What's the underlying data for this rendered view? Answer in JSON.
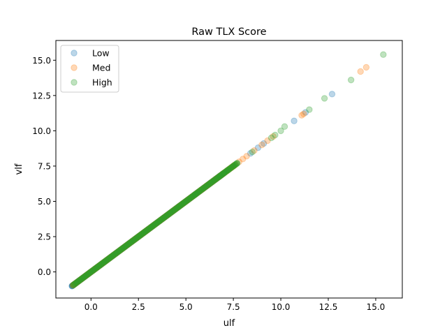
{
  "chart_data": {
    "type": "scatter",
    "title": "Raw TLX Score",
    "xlabel": "ulf",
    "ylabel": "vlf",
    "xlim": [
      -1.85,
      16.4
    ],
    "ylim": [
      -1.85,
      16.4
    ],
    "xticks": [
      0.0,
      2.5,
      5.0,
      7.5,
      10.0,
      12.5,
      15.0
    ],
    "xtick_labels": [
      "0.0",
      "2.5",
      "5.0",
      "7.5",
      "10.0",
      "12.5",
      "15.0"
    ],
    "yticks": [
      0.0,
      2.5,
      5.0,
      7.5,
      10.0,
      12.5,
      15.0
    ],
    "ytick_labels": [
      "0.0",
      "2.5",
      "5.0",
      "7.5",
      "10.0",
      "12.5",
      "15.0"
    ],
    "grid": false,
    "legend_position": "upper-left",
    "marker_alpha": 0.3,
    "series": [
      {
        "name": "Low",
        "color": "#1f77b4",
        "range": [
          -1.0,
          7.0
        ],
        "points": [
          [
            -1.0,
            -1.0
          ],
          [
            -0.98,
            -0.98
          ],
          [
            -0.95,
            -0.95
          ],
          [
            -0.9,
            -0.9
          ],
          [
            -0.85,
            -0.85
          ],
          [
            -0.8,
            -0.8
          ],
          [
            -0.7,
            -0.7
          ],
          [
            -0.6,
            -0.6
          ],
          [
            6.3,
            6.3
          ],
          [
            6.6,
            6.6
          ],
          [
            7.5,
            7.5
          ],
          [
            8.4,
            8.4
          ],
          [
            8.8,
            8.8
          ],
          [
            9.1,
            9.1
          ],
          [
            10.7,
            10.7
          ],
          [
            11.3,
            11.3
          ],
          [
            12.7,
            12.6
          ]
        ]
      },
      {
        "name": "Med",
        "color": "#ff7f0e",
        "range": [
          -0.95,
          7.6
        ],
        "points": [
          [
            5.8,
            5.8
          ],
          [
            6.1,
            6.1
          ],
          [
            7.8,
            7.8
          ],
          [
            8.0,
            8.0
          ],
          [
            8.2,
            8.2
          ],
          [
            8.6,
            8.6
          ],
          [
            9.0,
            9.0
          ],
          [
            9.3,
            9.3
          ],
          [
            9.6,
            9.6
          ],
          [
            11.1,
            11.1
          ],
          [
            11.2,
            11.2
          ],
          [
            14.2,
            14.2
          ],
          [
            14.5,
            14.5
          ]
        ]
      },
      {
        "name": "High",
        "color": "#2ca02c",
        "range": [
          -0.95,
          7.7
        ],
        "points": [
          [
            5.5,
            5.5
          ],
          [
            6.8,
            6.8
          ],
          [
            7.0,
            7.0
          ],
          [
            7.2,
            7.2
          ],
          [
            7.7,
            7.7
          ],
          [
            8.5,
            8.5
          ],
          [
            9.5,
            9.5
          ],
          [
            9.7,
            9.7
          ],
          [
            10.0,
            10.0
          ],
          [
            10.2,
            10.3
          ],
          [
            11.5,
            11.5
          ],
          [
            12.3,
            12.3
          ],
          [
            13.7,
            13.6
          ],
          [
            15.4,
            15.4
          ]
        ]
      }
    ]
  }
}
